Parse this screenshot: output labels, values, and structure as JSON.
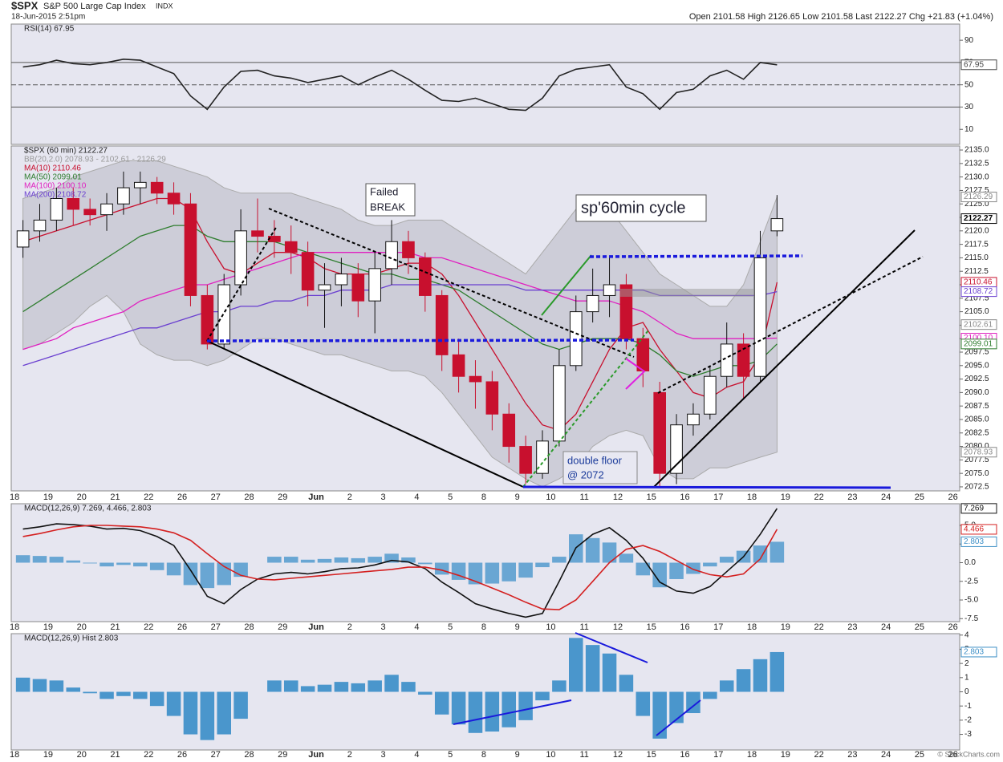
{
  "header": {
    "symbol": "$SPX",
    "name": "S&P 500 Large Cap Index",
    "exchange": "INDX",
    "date": "18-Jun-2015 2:51pm",
    "quote": "Open 2101.58  High 2126.65  Low 2101.58  Last 2122.27  Chg +21.83 (+1.04%)",
    "credit": "© StockCharts.com"
  },
  "chart_data": [
    {
      "type": "line",
      "legend": [
        {
          "text": "RSI(14) 67.95",
          "color": "#222"
        }
      ],
      "series": [
        {
          "name": "RSI(14)",
          "color": "#222",
          "values": [
            66,
            68,
            72,
            69,
            68,
            70,
            73,
            72,
            66,
            60,
            40,
            28,
            48,
            62,
            63,
            58,
            56,
            52,
            55,
            58,
            50,
            57,
            63,
            55,
            45,
            36,
            35,
            38,
            33,
            28,
            27,
            38,
            58,
            64,
            66,
            68,
            48,
            42,
            28,
            43,
            46,
            58,
            63,
            55,
            70,
            67.95
          ]
        }
      ],
      "ylim": [
        -3.5,
        104.5
      ],
      "yticks": [
        10,
        30,
        50,
        70,
        90
      ],
      "levels": [
        30,
        50,
        70
      ],
      "flags": [
        {
          "value": 67.95,
          "label": "67.95",
          "color": "#444"
        }
      ]
    },
    {
      "type": "candlestick",
      "legend": [
        {
          "text": "$SPX (60 min) 2122.27",
          "color": "#222"
        },
        {
          "text": "BB(20,2.0) 2078.93 - 2102.61 - 2126.29",
          "color": "#999"
        },
        {
          "text": "MA(10) 2110.46",
          "color": "#c8102e"
        },
        {
          "text": "MA(50) 2099.01",
          "color": "#2e7d2e"
        },
        {
          "text": "MA(100) 2100.10",
          "color": "#e020c0"
        },
        {
          "text": "MA(200) 2108.72",
          "color": "#6a3fd0"
        }
      ],
      "categories": [
        "18",
        "19",
        "20",
        "21",
        "22",
        "26",
        "27",
        "28",
        "29",
        "Jun",
        "2",
        "3",
        "4",
        "5",
        "8",
        "9",
        "10",
        "11",
        "12",
        "15",
        "16",
        "17",
        "18",
        "19",
        "22",
        "23",
        "24",
        "25",
        "26"
      ],
      "xlim": [
        -0.1,
        28.2
      ],
      "x": [
        0.25,
        0.75,
        1.25,
        1.75,
        2.25,
        2.75,
        3.25,
        3.75,
        4.25,
        4.75,
        5.25,
        5.75,
        6.25,
        6.75,
        7.25,
        7.75,
        8.25,
        8.75,
        9.25,
        9.75,
        10.25,
        10.75,
        11.25,
        11.75,
        12.25,
        12.75,
        13.25,
        13.75,
        14.25,
        14.75,
        15.25,
        15.75,
        16.25,
        16.75,
        17.25,
        17.75,
        18.25,
        18.75,
        19.25,
        19.75,
        20.25,
        20.75,
        21.25,
        21.75,
        22.25,
        22.75
      ],
      "open": [
        2117,
        2120,
        2122,
        2126,
        2124,
        2123,
        2125,
        2128,
        2129,
        2127,
        2125,
        2108,
        2099,
        2110,
        2120,
        2119,
        2118,
        2116,
        2109,
        2110,
        2112,
        2107,
        2113,
        2118,
        2115,
        2108,
        2097,
        2093,
        2092,
        2086,
        2080,
        2075,
        2081,
        2095,
        2105,
        2108,
        2110,
        2100,
        2090,
        2075,
        2084,
        2086,
        2093,
        2099,
        2093,
        2120
      ],
      "high": [
        2122,
        2125,
        2128,
        2128,
        2126,
        2127,
        2131,
        2131,
        2130,
        2129,
        2127,
        2110,
        2112,
        2124,
        2126,
        2122,
        2121,
        2118,
        2114,
        2115,
        2114,
        2116,
        2122,
        2120,
        2116,
        2109,
        2100,
        2096,
        2094,
        2088,
        2082,
        2083,
        2098,
        2108,
        2113,
        2115,
        2112,
        2102,
        2092,
        2086,
        2088,
        2095,
        2103,
        2101,
        2120,
        2126.65
      ],
      "low": [
        2115,
        2118,
        2120,
        2121,
        2121,
        2120,
        2123,
        2125,
        2125,
        2123,
        2106,
        2098,
        2098,
        2108,
        2116,
        2115,
        2112,
        2106,
        2102,
        2106,
        2104,
        2101,
        2110,
        2112,
        2105,
        2094,
        2090,
        2087,
        2083,
        2077,
        2073,
        2074,
        2080,
        2094,
        2103,
        2104,
        2098,
        2091,
        2072.5,
        2073,
        2082,
        2085,
        2091,
        2089,
        2092,
        2119
      ],
      "close": [
        2120,
        2122,
        2126,
        2124,
        2123,
        2125,
        2128,
        2129,
        2127,
        2125,
        2108,
        2099,
        2110,
        2120,
        2119,
        2118,
        2116,
        2109,
        2110,
        2112,
        2107,
        2113,
        2118,
        2115,
        2108,
        2097,
        2093,
        2092,
        2086,
        2080,
        2075,
        2081,
        2095,
        2105,
        2108,
        2110,
        2100,
        2094,
        2075,
        2084,
        2086,
        2093,
        2099,
        2093,
        2115,
        2122.27
      ],
      "up_color": "#111",
      "down_color": "#c8102e",
      "band": {
        "color": "#b8b8c4",
        "upper": [
          2126,
          2127,
          2128,
          2130,
          2131,
          2132,
          2133,
          2133,
          2133,
          2132,
          2131,
          2130,
          2128,
          2127,
          2127,
          2127,
          2127,
          2126,
          2125,
          2124,
          2122,
          2121,
          2121,
          2122,
          2122,
          2122,
          2120,
          2118,
          2116,
          2114,
          2112,
          2116,
          2120,
          2124,
          2126,
          2124,
          2120,
          2116,
          2112,
          2110,
          2108,
          2106,
          2106,
          2110,
          2118,
          2126.29
        ],
        "lower": [
          2098,
          2099,
          2101,
          2103,
          2106,
          2108,
          2105,
          2099,
          2097,
          2096,
          2096,
          2095,
          2096,
          2098,
          2100,
          2100,
          2099,
          2098,
          2097,
          2097,
          2096,
          2095,
          2094,
          2094,
          2093,
          2090,
          2086,
          2082,
          2078,
          2076,
          2074,
          2072.5,
          2074,
          2076,
          2080,
          2082,
          2083,
          2082,
          2076,
          2074,
          2074,
          2076,
          2076,
          2077,
          2078,
          2078.93
        ]
      },
      "series": [
        {
          "name": "MA(10)",
          "color": "#c8102e",
          "values": [
            2118,
            2119,
            2120,
            2121,
            2122,
            2123,
            2124,
            2125,
            2126,
            2126,
            2124,
            2118,
            2113,
            2112,
            2114,
            2116,
            2116,
            2115,
            2113,
            2112,
            2112,
            2112,
            2113,
            2114,
            2114,
            2112,
            2108,
            2103,
            2098,
            2093,
            2088,
            2084,
            2083,
            2086,
            2092,
            2098,
            2102,
            2103,
            2098,
            2094,
            2090,
            2089,
            2091,
            2092,
            2097,
            2110.46
          ]
        },
        {
          "name": "MA(50)",
          "color": "#2e7d2e",
          "values": [
            2105,
            2107,
            2109,
            2111,
            2113,
            2115,
            2117,
            2119,
            2120,
            2121,
            2121,
            2119,
            2118,
            2118,
            2118,
            2118,
            2117,
            2116,
            2115,
            2114,
            2113,
            2112,
            2112,
            2111,
            2111,
            2110,
            2109,
            2107,
            2105,
            2103,
            2101,
            2099,
            2098,
            2099,
            2100,
            2100,
            2100,
            2099,
            2097,
            2094,
            2093,
            2094,
            2095,
            2095,
            2096,
            2099.01
          ]
        },
        {
          "name": "MA(100)",
          "color": "#e020c0",
          "values": [
            2098,
            2099,
            2100,
            2102,
            2103,
            2104,
            2105,
            2107,
            2108,
            2109,
            2110,
            2110,
            2111,
            2112,
            2113,
            2114,
            2115,
            2116,
            2116,
            2116,
            2116,
            2116,
            2116,
            2116,
            2115,
            2115,
            2114,
            2113,
            2112,
            2111,
            2110,
            2109,
            2108,
            2107,
            2107,
            2107,
            2106,
            2105,
            2103,
            2101,
            2100,
            2100,
            2100,
            2100,
            2100,
            2100.1
          ]
        },
        {
          "name": "MA(200)",
          "color": "#6a3fd0",
          "values": [
            2095,
            2096,
            2097,
            2098,
            2099,
            2100,
            2101,
            2102,
            2102,
            2103,
            2104,
            2105,
            2105,
            2106,
            2106,
            2107,
            2107,
            2108,
            2108,
            2109,
            2109,
            2109,
            2110,
            2110,
            2110,
            2110,
            2110,
            2110,
            2110,
            2110,
            2109,
            2109,
            2109,
            2109,
            2109,
            2109,
            2109,
            2109,
            2108,
            2108,
            2108,
            2108,
            2108,
            2108,
            2108,
            2108.72
          ]
        }
      ],
      "ylim": [
        2071.75,
        2135.75
      ],
      "yticks": [
        2072.5,
        {
          "value": 2075,
          "label": "2075.0"
        },
        2077.5,
        {
          "value": 2080,
          "label": "2080.0"
        },
        2082.5,
        {
          "value": 2085,
          "label": "2085.0"
        },
        2087.5,
        {
          "value": 2090,
          "label": "2090.0"
        },
        2092.5,
        {
          "value": 2095,
          "label": "2095.0"
        },
        2097.5,
        {
          "value": 2100,
          "label": "2100.0"
        },
        2102.5,
        {
          "value": 2105,
          "label": "2105.0"
        },
        2107.5,
        {
          "value": 2110,
          "label": "2110.0"
        },
        2112.5,
        {
          "value": 2115,
          "label": "2115.0"
        },
        2117.5,
        {
          "value": 2120,
          "label": "2120.0"
        },
        2122.5,
        {
          "value": 2125,
          "label": "2125.0"
        },
        2127.5,
        {
          "value": 2130,
          "label": "2130.0"
        },
        2132.5,
        {
          "value": 2135,
          "label": "2135.0"
        }
      ],
      "flags": [
        {
          "value": 2126.29,
          "label": "2126.29",
          "color": "#888"
        },
        {
          "value": 2122.27,
          "label": "2122.27",
          "color": "#000"
        },
        {
          "value": 2110.46,
          "label": "2110.46",
          "color": "#c8102e"
        },
        {
          "value": 2108.72,
          "label": "2108.72",
          "color": "#6a3fd0"
        },
        {
          "value": 2102.61,
          "label": "2102.61",
          "color": "#888"
        },
        {
          "value": 2100.1,
          "label": "2100.10",
          "color": "#e020c0"
        },
        {
          "value": 2099.01,
          "label": "2099.01",
          "color": "#2e7d2e"
        },
        {
          "value": 2078.93,
          "label": "2078.93",
          "color": "#888"
        }
      ],
      "annotations": {
        "failed": [
          "Failed",
          "BREAK"
        ],
        "cycle": "sp'60min cycle",
        "floor": [
          "double floor",
          "@ 2072"
        ]
      }
    },
    {
      "type": "line",
      "legend": [
        {
          "text": "MACD(12,26,9) 7.269, 4.466, 2.803",
          "color": "#222"
        }
      ],
      "series": [
        {
          "name": "MACD",
          "color": "#111",
          "values": [
            4.5,
            4.8,
            5.2,
            5.1,
            4.9,
            4.5,
            4.6,
            4.3,
            3.5,
            2.3,
            -1,
            -4.5,
            -5.5,
            -3.6,
            -2.2,
            -1.5,
            -1.3,
            -1.5,
            -1.2,
            -0.8,
            -0.7,
            -0.3,
            0.3,
            0.1,
            -0.8,
            -2.6,
            -4.0,
            -5.5,
            -6.2,
            -6.8,
            -7.3,
            -6.8,
            -2.5,
            2,
            3.8,
            4.7,
            3,
            0.6,
            -2.6,
            -3.8,
            -4.1,
            -3.2,
            -1.2,
            0.8,
            3.8,
            7.269
          ]
        },
        {
          "name": "Signal",
          "color": "#d42020",
          "values": [
            3.5,
            3.9,
            4.4,
            4.8,
            5.0,
            5.0,
            4.9,
            4.8,
            4.5,
            4.0,
            3,
            1.2,
            -0.5,
            -1.7,
            -2.2,
            -2.3,
            -2.1,
            -1.9,
            -1.7,
            -1.5,
            -1.3,
            -1.1,
            -0.9,
            -0.6,
            -0.6,
            -1.0,
            -1.7,
            -2.5,
            -3.4,
            -4.3,
            -5.3,
            -6.2,
            -6.3,
            -5,
            -2.5,
            0,
            1.8,
            2.3,
            1.5,
            0.3,
            -0.9,
            -1.6,
            -1.9,
            -1.5,
            0.5,
            4.466
          ]
        }
      ],
      "ylim": [
        -7.9,
        7.9
      ],
      "yticks": [
        -7.5,
        {
          "value": -5,
          "label": "-5.0"
        },
        -2.5,
        {
          "value": 0,
          "label": "0.0"
        },
        2.5,
        {
          "value": 5,
          "label": "5.0"
        }
      ],
      "flags": [
        {
          "value": 7.269,
          "label": "7.269",
          "color": "#111"
        },
        {
          "value": 4.466,
          "label": "4.466",
          "color": "#d42020"
        },
        {
          "value": 2.803,
          "label": "2.803",
          "color": "#3d8fc6"
        }
      ]
    },
    {
      "type": "bar",
      "legend": [
        {
          "text": "MACD(12,26,9) Hist 2.803",
          "color": "#222"
        }
      ],
      "color": "#4a96cc",
      "values": [
        1.0,
        0.9,
        0.8,
        0.3,
        -0.1,
        -0.5,
        -0.3,
        -0.5,
        -1,
        -1.7,
        -3,
        -3.4,
        -3,
        -1.9,
        0,
        0.8,
        0.8,
        0.4,
        0.5,
        0.7,
        0.6,
        0.8,
        1.2,
        0.7,
        -0.2,
        -1.6,
        -2.3,
        -2.9,
        -2.8,
        -2.5,
        -2,
        -0.6,
        0.8,
        3.8,
        3.3,
        2.7,
        1.2,
        -1.7,
        -3.3,
        -2.2,
        -1.5,
        -0.5,
        0.8,
        1.6,
        2.3,
        2.803
      ],
      "ylim": [
        -4.1,
        4.1
      ],
      "yticks": [
        -3,
        -2,
        -1,
        0,
        1,
        2,
        3,
        4
      ],
      "flags": [
        {
          "value": 2.803,
          "label": "2.803",
          "color": "#3d8fc6"
        }
      ]
    }
  ]
}
